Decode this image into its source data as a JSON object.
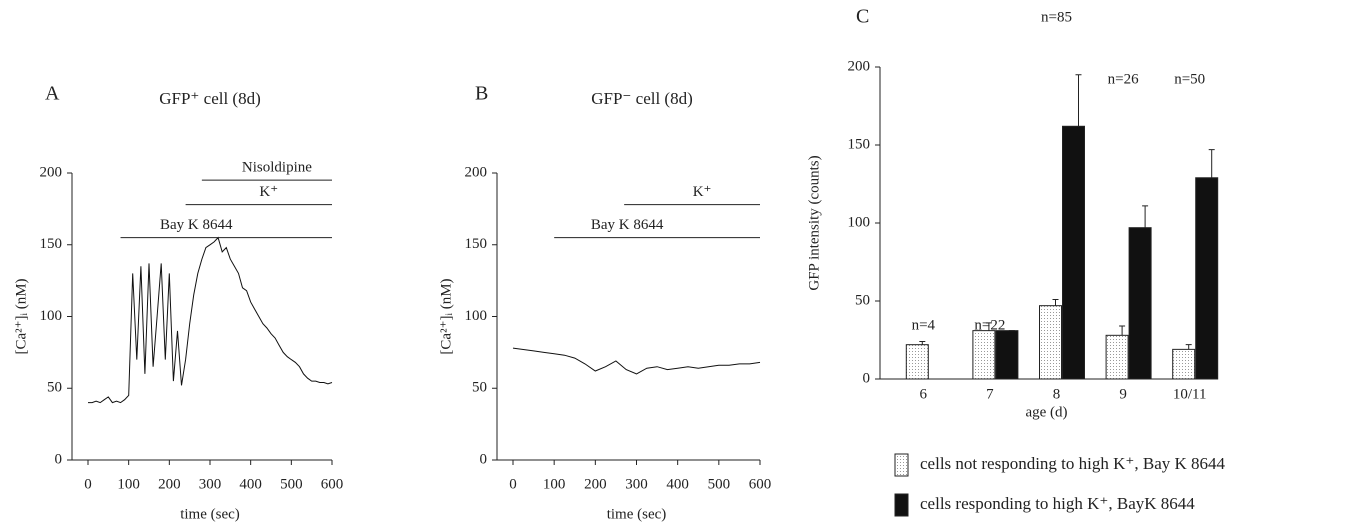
{
  "chart_data": [
    {
      "type": "line",
      "panel": "A",
      "title": "GFP⁺ cell (8d)",
      "x_label": "time (sec)",
      "y_label": "[Ca²⁺]ᵢ (nM)",
      "xlim": [
        0,
        600
      ],
      "xticks": [
        0,
        100,
        200,
        300,
        400,
        500,
        600
      ],
      "ylim": [
        0,
        200
      ],
      "yticks": [
        0,
        50,
        100,
        150,
        200
      ],
      "color": "#111111",
      "x": [
        0,
        10,
        20,
        30,
        40,
        50,
        60,
        70,
        80,
        90,
        100,
        110,
        120,
        130,
        140,
        150,
        160,
        170,
        180,
        190,
        200,
        210,
        220,
        230,
        240,
        250,
        260,
        270,
        280,
        290,
        300,
        310,
        320,
        330,
        340,
        350,
        360,
        370,
        380,
        390,
        400,
        410,
        420,
        430,
        440,
        450,
        460,
        470,
        480,
        490,
        500,
        510,
        520,
        530,
        540,
        550,
        560,
        570,
        580,
        590,
        600
      ],
      "values": [
        40,
        40,
        41,
        40,
        42,
        44,
        40,
        41,
        40,
        42,
        45,
        130,
        70,
        135,
        60,
        137,
        65,
        100,
        137,
        70,
        130,
        55,
        90,
        52,
        70,
        95,
        115,
        130,
        140,
        148,
        150,
        152,
        155,
        145,
        148,
        140,
        135,
        130,
        120,
        118,
        110,
        105,
        100,
        95,
        92,
        88,
        85,
        80,
        75,
        72,
        70,
        68,
        65,
        60,
        57,
        55,
        55,
        54,
        54,
        53,
        54
      ],
      "annotations": [
        {
          "text": "Bay K 8644",
          "x": [
            80,
            600
          ],
          "y": 155
        },
        {
          "text": "K⁺",
          "x": [
            240,
            600
          ],
          "y": 178
        },
        {
          "text": "Nisoldipine",
          "x": [
            280,
            600
          ],
          "y": 195
        }
      ]
    },
    {
      "type": "line",
      "panel": "B",
      "title": "GFP⁻ cell (8d)",
      "x_label": "time (sec)",
      "y_label": "[Ca²⁺]ᵢ (nM)",
      "xlim": [
        0,
        600
      ],
      "xticks": [
        0,
        100,
        200,
        300,
        400,
        500,
        600
      ],
      "ylim": [
        0,
        200
      ],
      "yticks": [
        0,
        50,
        100,
        150,
        200
      ],
      "color": "#111111",
      "x": [
        0,
        25,
        50,
        75,
        100,
        125,
        150,
        175,
        200,
        225,
        250,
        275,
        300,
        325,
        350,
        375,
        400,
        425,
        450,
        475,
        500,
        525,
        550,
        575,
        600
      ],
      "values": [
        78,
        77,
        76,
        75,
        74,
        73,
        71,
        67,
        62,
        65,
        69,
        63,
        60,
        64,
        65,
        63,
        64,
        65,
        64,
        65,
        66,
        66,
        67,
        67,
        68
      ],
      "annotations": [
        {
          "text": "Bay K 8644",
          "x": [
            100,
            600
          ],
          "y": 155
        },
        {
          "text": "K⁺",
          "x": [
            270,
            600
          ],
          "y": 178
        }
      ]
    },
    {
      "type": "bar",
      "panel": "C",
      "x_label": "age (d)",
      "y_label": "GFP intensity (counts)",
      "categories": [
        "6",
        "7",
        "8",
        "9",
        "10/11"
      ],
      "ylim": [
        0,
        200
      ],
      "yticks": [
        0,
        50,
        100,
        150,
        200
      ],
      "group_labels": [
        "n=4",
        "n=22",
        "n=85",
        "n=26",
        "n=50"
      ],
      "series": [
        {
          "name": "cells not responding to high K⁺, Bay K 8644",
          "color": "#ffffff",
          "values": [
            22,
            31,
            47,
            28,
            19
          ],
          "errors": [
            2,
            5,
            4,
            6,
            3
          ]
        },
        {
          "name": "cells responding to high K⁺, BayK 8644",
          "color": "#111111",
          "values": [
            null,
            31,
            162,
            97,
            129
          ],
          "errors": [
            null,
            0,
            33,
            14,
            18
          ]
        }
      ]
    }
  ]
}
